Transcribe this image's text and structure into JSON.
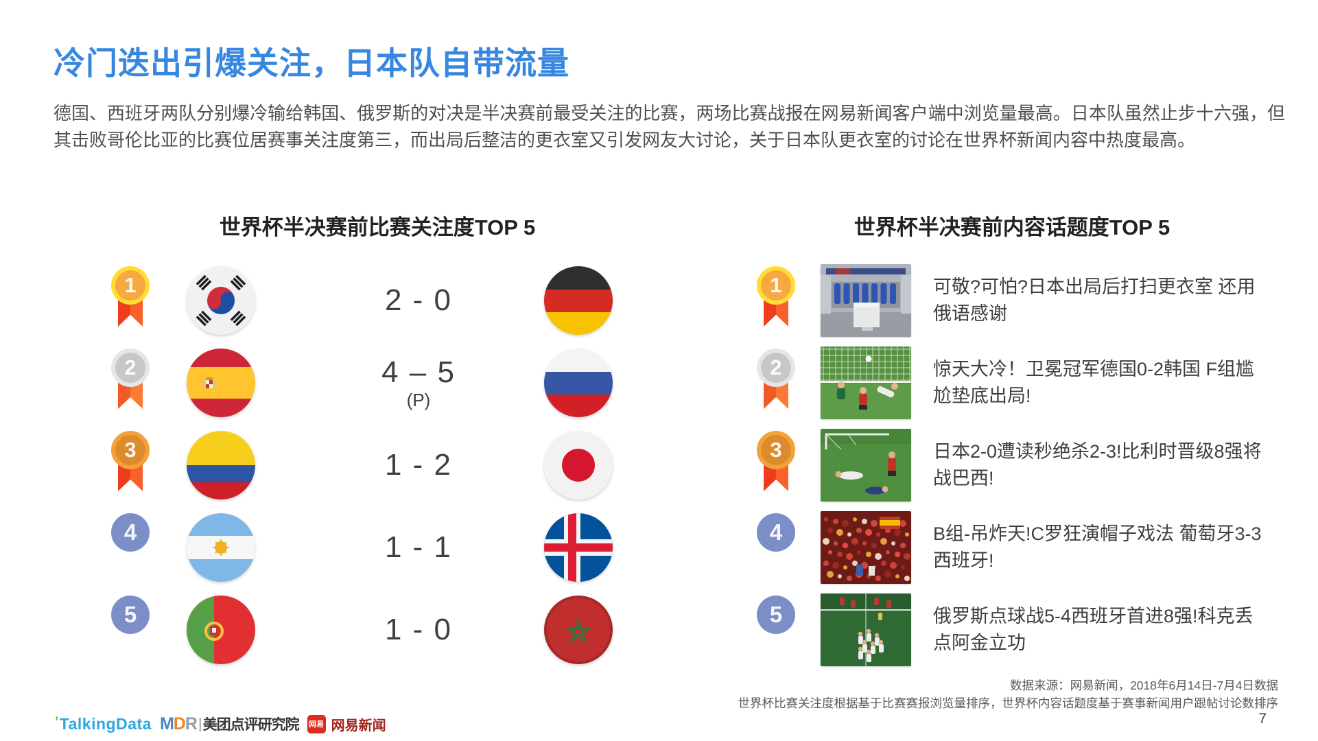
{
  "page": {
    "title": "冷门迭出引爆关注，日本队自带流量",
    "paragraph": "德国、西班牙两队分别爆冷输给韩国、俄罗斯的对决是半决赛前最受关注的比赛，两场比赛战报在网易新闻客户端中浏览量最高。日本队虽然止步十六强，但其击败哥伦比亚的比赛位居赛事关注度第三，而出局后整洁的更衣室又引发网友大讨论，关于日本队更衣室的讨论在世界杯新闻内容中热度最高。",
    "page_number": "7"
  },
  "left_panel": {
    "title": "世界杯半决赛前比赛关注度TOP 5",
    "rows": [
      {
        "rank": "1",
        "team_a": "south-korea",
        "score": "2 - 0",
        "score_note": "",
        "team_b": "germany"
      },
      {
        "rank": "2",
        "team_a": "spain",
        "score": "4 – 5",
        "score_note": "(P)",
        "team_b": "russia"
      },
      {
        "rank": "3",
        "team_a": "colombia",
        "score": "1 - 2",
        "score_note": "",
        "team_b": "japan"
      },
      {
        "rank": "4",
        "team_a": "argentina",
        "score": "1 - 1",
        "score_note": "",
        "team_b": "iceland"
      },
      {
        "rank": "5",
        "team_a": "portugal",
        "score": "1 - 0",
        "score_note": "",
        "team_b": "morocco"
      }
    ]
  },
  "right_panel": {
    "title": "世界杯半决赛前内容话题度TOP 5",
    "rows": [
      {
        "rank": "1",
        "thumbnail": "locker-room",
        "headline": "可敬?可怕?日本出局后打扫更衣室 还用俄语感谢"
      },
      {
        "rank": "2",
        "thumbnail": "goal-save",
        "headline": "惊天大冷！卫冕冠军德国0-2韩国 F组尴尬垫底出局!"
      },
      {
        "rank": "3",
        "thumbnail": "players-down",
        "headline": "日本2-0遭读秒绝杀2-3!比利时晋级8强将战巴西!"
      },
      {
        "rank": "4",
        "thumbnail": "fans-crowd",
        "headline": "B组-吊炸天!C罗狂演帽子戏法 葡萄牙3-3西班牙!"
      },
      {
        "rank": "5",
        "thumbnail": "team-celebration",
        "headline": "俄罗斯点球战5-4西班牙首进8强!科克丢点阿金立功"
      }
    ]
  },
  "footer": {
    "source_line1": "数据来源：网易新闻，2018年6月14日-7月4日数据",
    "source_line2": "世界杯比赛关注度根据基于比赛赛报浏览量排序，世界杯内容话题度基于赛事新闻用户跟帖讨论数排序",
    "logos": {
      "td_mark": "’",
      "talkingdata": "TalkingData",
      "mdr_m": "M",
      "mdr_d": "D",
      "mdr_r": "R",
      "divider": "|",
      "meituan": "美团点评研究院",
      "netease_badge": "网易",
      "netease_label": "网易新闻"
    }
  },
  "colors": {
    "title_blue": "#3787e0",
    "rank_plain_blue": "#7c8ec7",
    "medal_gold_ring": "#ffdd33",
    "medal_gold_face": "#f7a941",
    "medal_silver_ring": "#e6e6e6",
    "medal_silver_face": "#c7c7ca",
    "medal_bronze_ring": "#f2a238",
    "medal_bronze_face": "#dc8c2c",
    "ribbon_red": "#ee3d1d",
    "netease_red": "#e02a20"
  }
}
